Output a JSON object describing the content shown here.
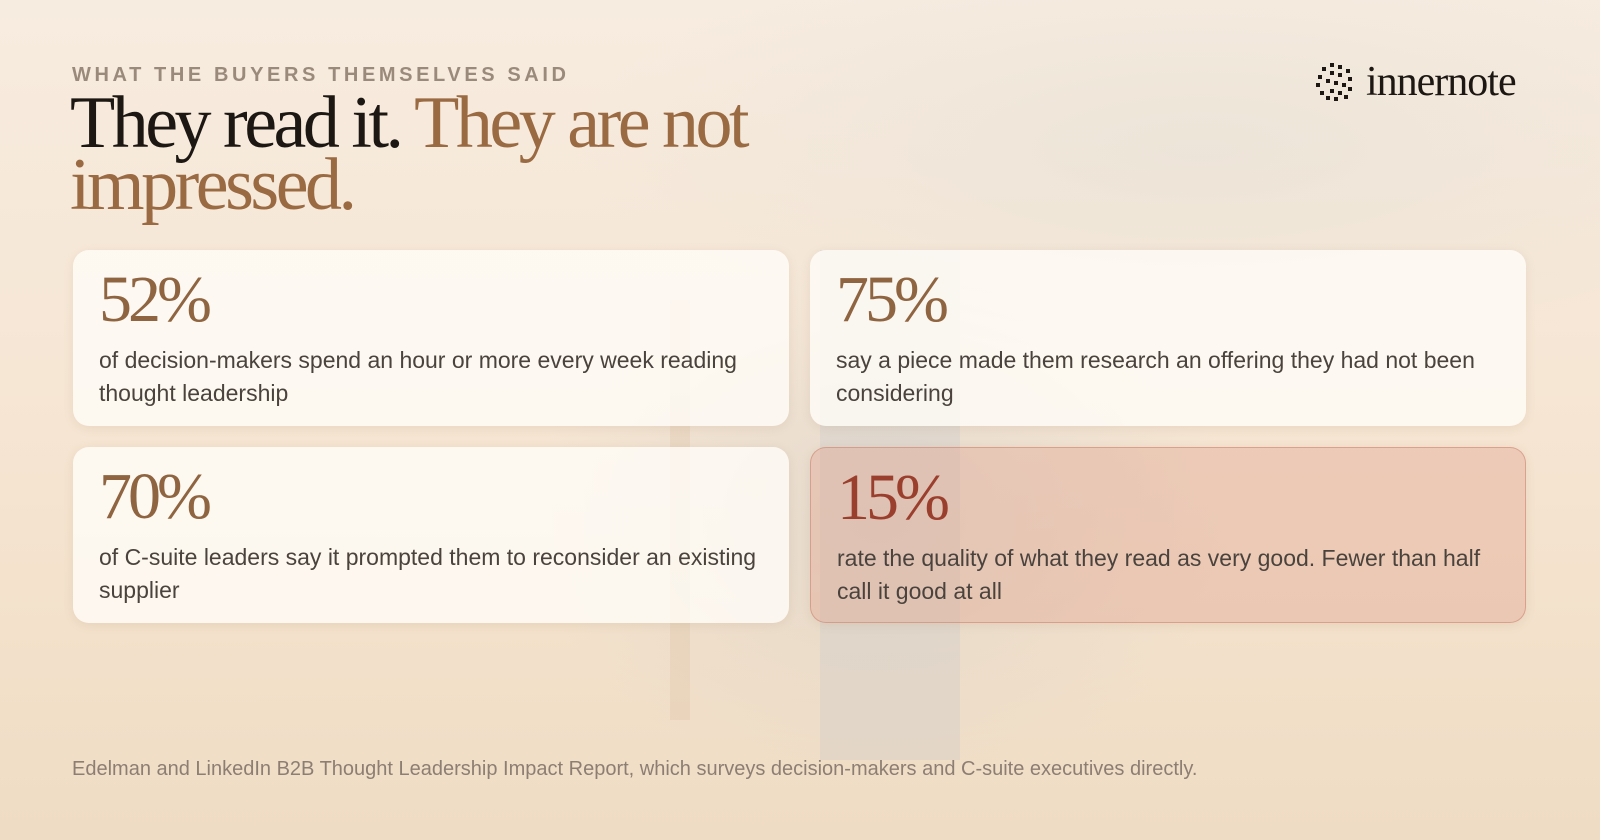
{
  "header": {
    "eyebrow": "WHAT THE BUYERS THEMSELVES SAID",
    "title_lead": "They read it.",
    "title_accent": "They are not impressed.",
    "logo": "innernote"
  },
  "cards": [
    {
      "stat": "52%",
      "text": "of decision-makers spend an hour or more every week reading thought leadership"
    },
    {
      "stat": "75%",
      "text": "say a piece made them research an offering they had not been considering"
    },
    {
      "stat": "70%",
      "text": "of C-suite leaders say it prompted them to reconsider an existing supplier"
    },
    {
      "stat": "15%",
      "text": "rate the quality of what they read as very good. Fewer than half call it good at all"
    }
  ],
  "source": "Edelman and LinkedIn B2B Thought Leadership Impact Report, which surveys decision-makers and C-suite executives directly."
}
